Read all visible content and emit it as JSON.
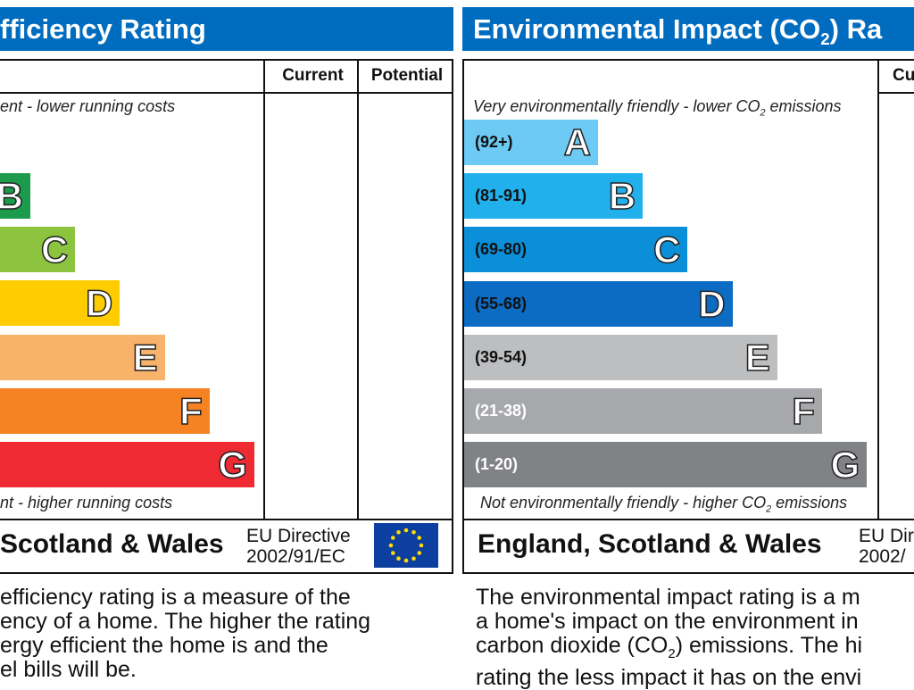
{
  "energy": {
    "title": "fficiency Rating",
    "col_current": "Current",
    "col_potential": "Potential",
    "top_note": "ent - lower running costs",
    "bottom_note": "nt - higher running costs",
    "bands": [
      {
        "letter": "B",
        "color": "#1b9b4b"
      },
      {
        "letter": "C",
        "color": "#8cc43f"
      },
      {
        "letter": "D",
        "color": "#ffcc00"
      },
      {
        "letter": "E",
        "color": "#f9b26a"
      },
      {
        "letter": "F",
        "color": "#f58323"
      },
      {
        "letter": "G",
        "color": "#ee2a33"
      }
    ],
    "region": "Scotland & Wales",
    "eu_line1": "EU Directive",
    "eu_line2": "2002/91/EC",
    "description": [
      "efficiency rating is a measure of the",
      "ency of a home. The higher the rating",
      "ergy efficient the home is and the",
      "el bills will be."
    ]
  },
  "environment": {
    "title_pre": "Environmental Impact (CO",
    "title_sub": "2",
    "title_post": ") Ra",
    "col_current": "Cu",
    "top_note_pre": "Very environmentally friendly - lower CO",
    "top_note_sub": "2",
    "top_note_post": " emissions",
    "bottom_note_pre": "Not environmentally friendly - higher CO",
    "bottom_note_sub": "2",
    "bottom_note_post": " emissions",
    "bands": [
      {
        "letter": "A",
        "range": "(92+)",
        "color": "#6ccaf5",
        "text": "#111"
      },
      {
        "letter": "B",
        "range": "(81-91)",
        "color": "#22b0ec",
        "text": "#111"
      },
      {
        "letter": "C",
        "range": "(69-80)",
        "color": "#0b8fd9",
        "text": "#111"
      },
      {
        "letter": "D",
        "range": "(55-68)",
        "color": "#0c6cc3",
        "text": "#111"
      },
      {
        "letter": "E",
        "range": "(39-54)",
        "color": "#bdbec0",
        "text": "#111"
      },
      {
        "letter": "F",
        "range": "(21-38)",
        "color": "#a6a8ab",
        "text": "#fff"
      },
      {
        "letter": "G",
        "range": "(1-20)",
        "color": "#808285",
        "text": "#fff"
      }
    ],
    "region": "England, Scotland & Wales",
    "eu_line1": "EU Dir",
    "eu_line2": "2002/",
    "description_1": "The environmental impact rating is a m",
    "description_2": "a home's impact on the environment in",
    "description_3_pre": "carbon dioxide (CO",
    "description_3_sub": "2",
    "description_3_post": ") emissions. The hi",
    "description_4": "rating the less impact it has on the envi"
  }
}
